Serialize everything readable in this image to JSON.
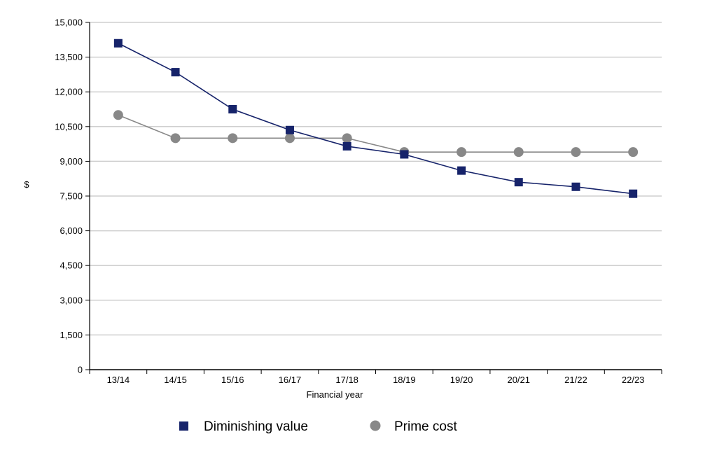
{
  "chart_data": {
    "type": "line",
    "title": "",
    "xlabel": "Financial year",
    "ylabel": "$",
    "categories": [
      "13/14",
      "14/15",
      "15/16",
      "16/17",
      "17/18",
      "18/19",
      "19/20",
      "20/21",
      "21/22",
      "22/23"
    ],
    "ylim": [
      0,
      15000
    ],
    "yticks": [
      0,
      1500,
      3000,
      4500,
      6000,
      7500,
      9000,
      10500,
      12000,
      13500,
      15000
    ],
    "ytick_labels": [
      "0",
      "1,500",
      "3,000",
      "4,500",
      "6,000",
      "7,500",
      "9,000",
      "10,500",
      "12,000",
      "13,500",
      "15,000"
    ],
    "grid": true,
    "legend_position": "bottom",
    "series": [
      {
        "name": "Diminishing value",
        "marker": "square",
        "color": "#16236a",
        "values": [
          14100,
          12850,
          11250,
          10350,
          9650,
          9300,
          8600,
          8100,
          7900,
          7600
        ]
      },
      {
        "name": "Prime cost",
        "marker": "circle",
        "color": "#888888",
        "values": [
          11000,
          10000,
          10000,
          10000,
          10000,
          9400,
          9400,
          9400,
          9400,
          9400
        ]
      }
    ]
  }
}
